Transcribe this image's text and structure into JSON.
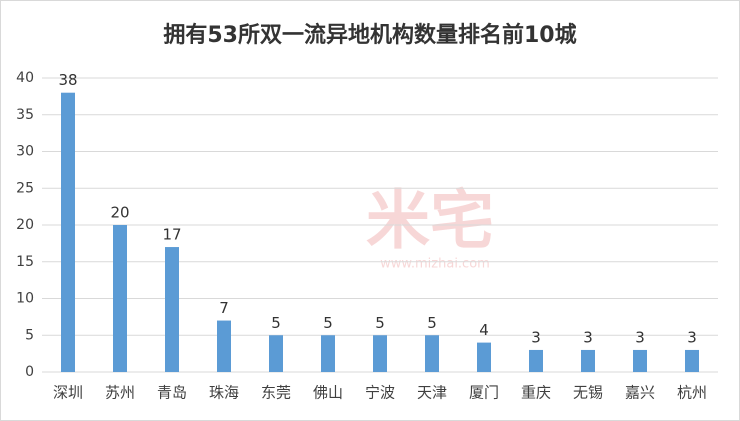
{
  "chart_data": {
    "type": "bar",
    "title": "拥有53所双一流异地机构数量排名前10城",
    "categories": [
      "深圳",
      "苏州",
      "青岛",
      "珠海",
      "东莞",
      "佛山",
      "宁波",
      "天津",
      "厦门",
      "重庆",
      "无锡",
      "嘉兴",
      "杭州"
    ],
    "values": [
      38,
      20,
      17,
      7,
      5,
      5,
      5,
      5,
      4,
      3,
      3,
      3,
      3
    ],
    "color": "#5b9bd5",
    "ylim": [
      0,
      40
    ],
    "yticks": [
      0,
      5,
      10,
      15,
      20,
      25,
      30,
      35,
      40
    ],
    "grid": true,
    "watermark": {
      "brand": "米宅",
      "url": "www.mizhai.com"
    }
  }
}
